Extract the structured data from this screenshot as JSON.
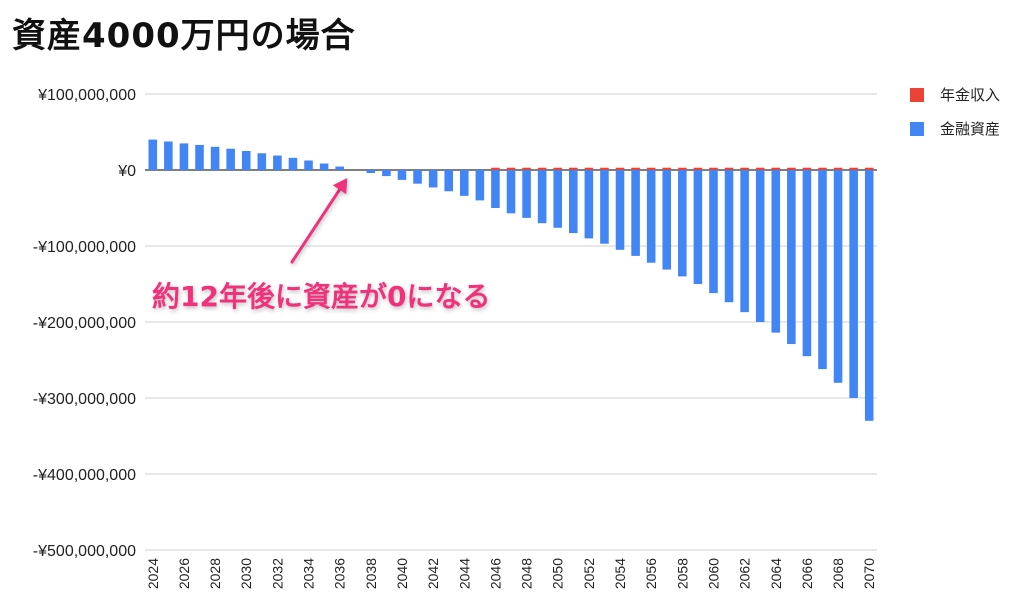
{
  "chart_data": {
    "type": "bar",
    "title": "資産4000万円の場合",
    "years": [
      2024,
      2025,
      2026,
      2027,
      2028,
      2029,
      2030,
      2031,
      2032,
      2033,
      2034,
      2035,
      2036,
      2037,
      2038,
      2039,
      2040,
      2041,
      2042,
      2043,
      2044,
      2045,
      2046,
      2047,
      2048,
      2049,
      2050,
      2051,
      2052,
      2053,
      2054,
      2055,
      2056,
      2057,
      2058,
      2059,
      2060,
      2061,
      2062,
      2063,
      2064,
      2065,
      2066,
      2067,
      2068,
      2069,
      2070
    ],
    "x_tick_labels": [
      "2024",
      "2026",
      "2028",
      "2030",
      "2032",
      "2034",
      "2036",
      "2038",
      "2040",
      "2042",
      "2044",
      "2046",
      "2048",
      "2050",
      "2052",
      "2054",
      "2056",
      "2058",
      "2060",
      "2062",
      "2064",
      "2066",
      "2068",
      "2070"
    ],
    "series": [
      {
        "name": "年金収入",
        "color": "#ea4335",
        "values": [
          0,
          0,
          0,
          0,
          0,
          0,
          0,
          0,
          0,
          0,
          0,
          0,
          0,
          0,
          0,
          0,
          0,
          0,
          0,
          0,
          0,
          0,
          3000000,
          3000000,
          3000000,
          3000000,
          3000000,
          3000000,
          3000000,
          3000000,
          3000000,
          3000000,
          3000000,
          3000000,
          3000000,
          3000000,
          3000000,
          3000000,
          3000000,
          3000000,
          3000000,
          3000000,
          3000000,
          3000000,
          3000000,
          3000000,
          3000000
        ]
      },
      {
        "name": "金融資産",
        "color": "#4285f4",
        "values": [
          40000000,
          37500000,
          35000000,
          33000000,
          30500000,
          28000000,
          25000000,
          22000000,
          19000000,
          16000000,
          12500000,
          8500000,
          4500000,
          0,
          -4000000,
          -8000000,
          -13000000,
          -18000000,
          -23000000,
          -28000000,
          -34000000,
          -40000000,
          -50000000,
          -57000000,
          -63000000,
          -70000000,
          -76000000,
          -83000000,
          -90000000,
          -97000000,
          -105000000,
          -113000000,
          -122000000,
          -131000000,
          -140000000,
          -150000000,
          -162000000,
          -174000000,
          -187000000,
          -200000000,
          -214000000,
          -229000000,
          -245000000,
          -262000000,
          -280000000,
          -300000000,
          -330000000
        ]
      }
    ],
    "y_tick_labels": [
      "¥100,000,000",
      "¥0",
      "-¥100,000,000",
      "-¥200,000,000",
      "-¥300,000,000",
      "-¥400,000,000",
      "-¥500,000,000"
    ],
    "y_ticks": [
      100000000,
      0,
      -100000000,
      -200000000,
      -300000000,
      -400000000,
      -500000000
    ],
    "ylim": [
      -500000000,
      100000000
    ],
    "legend_position": "top-right",
    "grid": true,
    "annotation": {
      "text": "約12年後に資産が0になる",
      "target_year": 2037
    }
  }
}
